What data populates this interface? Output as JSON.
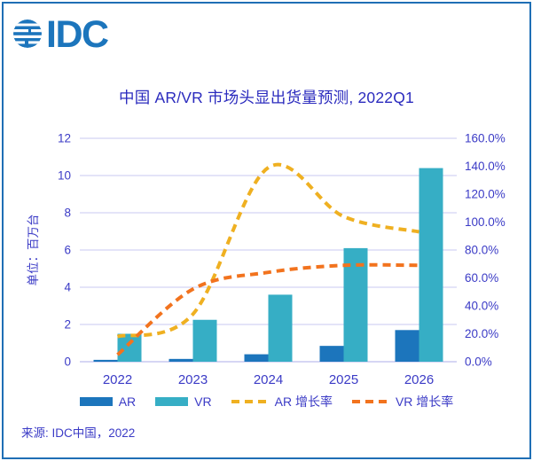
{
  "brand": {
    "logo_text": "IDC"
  },
  "chart_data": {
    "type": "combo-bar-line",
    "title": "中国 AR/VR 市场头显出货量预测, 2022Q1",
    "categories": [
      "2022",
      "2023",
      "2024",
      "2025",
      "2026"
    ],
    "bar_series": [
      {
        "name": "AR",
        "color": "#1C75BC",
        "axis": "left",
        "values": [
          0.1,
          0.15,
          0.4,
          0.85,
          1.7
        ]
      },
      {
        "name": "VR",
        "color": "#36AEC5",
        "axis": "left",
        "values": [
          1.5,
          2.25,
          3.6,
          6.1,
          10.4
        ]
      }
    ],
    "line_series": [
      {
        "name": "AR 增长率",
        "color": "#EFB021",
        "style": "dashed",
        "axis": "right",
        "values": [
          18,
          34,
          139,
          104,
          93
        ]
      },
      {
        "name": "VR 增长率",
        "color": "#F2731E",
        "style": "dashed",
        "axis": "right",
        "values": [
          5,
          52,
          64,
          69,
          69
        ]
      }
    ],
    "y_left": {
      "label": "单位：百万台",
      "min": 0,
      "max": 12,
      "tick_labels": [
        "0",
        "2",
        "4",
        "6",
        "8",
        "10",
        "12"
      ]
    },
    "y_right": {
      "min": 0,
      "max": 160,
      "tick_labels": [
        "0.0%",
        "20.0%",
        "40.0%",
        "60.0%",
        "80.0%",
        "100.0%",
        "120.0%",
        "140.0%",
        "160.0%"
      ]
    },
    "grid": true,
    "legend_position": "bottom"
  },
  "footer": {
    "source": "来源: IDC中国，2022"
  },
  "colors": {
    "text": "#3B3BC6",
    "title": "#2B2BBE",
    "grid": "#C9C9F0",
    "axis_line": "#AEAEE8",
    "frame": "#1F6FB5",
    "logo": "#1C75BC"
  }
}
